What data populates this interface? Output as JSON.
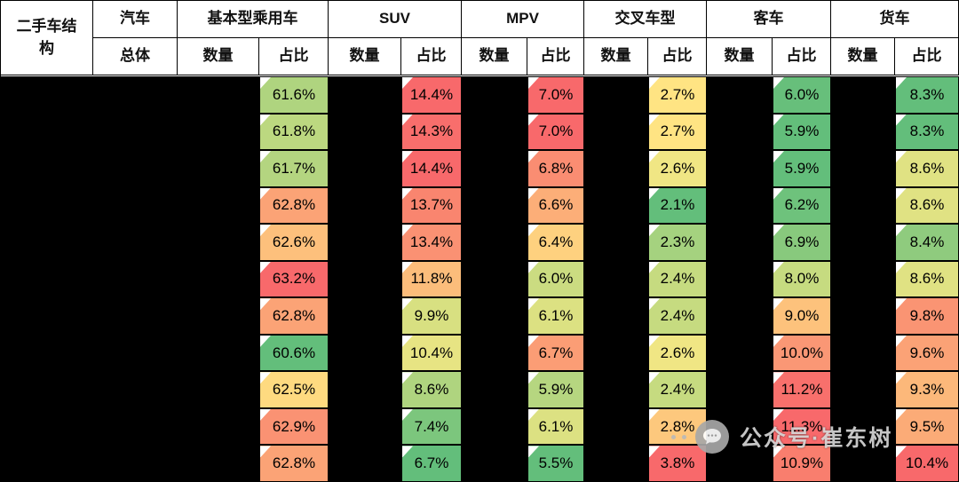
{
  "table": {
    "corner_label": "二手车结构",
    "car_top": "汽车",
    "car_bottom": "总体",
    "sub_qty": "数量",
    "sub_pct": "占比",
    "groups": [
      {
        "label": "基本型乘用车"
      },
      {
        "label": "SUV"
      },
      {
        "label": "MPV"
      },
      {
        "label": "交叉车型"
      },
      {
        "label": "客车"
      },
      {
        "label": "货车"
      }
    ],
    "rows": [
      {
        "cells": [
          {
            "v": "61.6%",
            "c": "#AFD47F"
          },
          {
            "v": "14.4%",
            "c": "#F8696B"
          },
          {
            "v": "7.0%",
            "c": "#F8696B"
          },
          {
            "v": "2.7%",
            "c": "#FFE483"
          },
          {
            "v": "6.0%",
            "c": "#67BF7B"
          },
          {
            "v": "8.3%",
            "c": "#63BE7B"
          }
        ]
      },
      {
        "cells": [
          {
            "v": "61.8%",
            "c": "#BCD880"
          },
          {
            "v": "14.3%",
            "c": "#F86E6C"
          },
          {
            "v": "7.0%",
            "c": "#F8696B"
          },
          {
            "v": "2.7%",
            "c": "#FFE483"
          },
          {
            "v": "5.9%",
            "c": "#63BE7B"
          },
          {
            "v": "8.3%",
            "c": "#63BE7B"
          }
        ]
      },
      {
        "cells": [
          {
            "v": "61.7%",
            "c": "#B4D580"
          },
          {
            "v": "14.4%",
            "c": "#F8696B"
          },
          {
            "v": "6.8%",
            "c": "#FA8D72"
          },
          {
            "v": "2.6%",
            "c": "#F0E684"
          },
          {
            "v": "5.9%",
            "c": "#63BE7B"
          },
          {
            "v": "8.6%",
            "c": "#E0E283"
          }
        ]
      },
      {
        "cells": [
          {
            "v": "62.8%",
            "c": "#FBA376"
          },
          {
            "v": "13.7%",
            "c": "#F9856F"
          },
          {
            "v": "6.6%",
            "c": "#FCAE78"
          },
          {
            "v": "2.1%",
            "c": "#63BE7B"
          },
          {
            "v": "6.2%",
            "c": "#6EC27C"
          },
          {
            "v": "8.6%",
            "c": "#E0E283"
          }
        ]
      },
      {
        "cells": [
          {
            "v": "62.6%",
            "c": "#FDC07C"
          },
          {
            "v": "13.4%",
            "c": "#FA9173"
          },
          {
            "v": "6.4%",
            "c": "#FED17F"
          },
          {
            "v": "2.3%",
            "c": "#A5D27F"
          },
          {
            "v": "6.9%",
            "c": "#88C97D"
          },
          {
            "v": "8.4%",
            "c": "#8FCB7E"
          }
        ]
      },
      {
        "cells": [
          {
            "v": "63.2%",
            "c": "#F8696B"
          },
          {
            "v": "11.8%",
            "c": "#FCBD7B"
          },
          {
            "v": "6.0%",
            "c": "#CBDC81"
          },
          {
            "v": "2.4%",
            "c": "#C6DB80"
          },
          {
            "v": "8.0%",
            "c": "#C6DB80"
          },
          {
            "v": "8.6%",
            "c": "#E0E283"
          }
        ]
      },
      {
        "cells": [
          {
            "v": "62.8%",
            "c": "#FBA376"
          },
          {
            "v": "9.9%",
            "c": "#D8E081"
          },
          {
            "v": "6.1%",
            "c": "#DCE182"
          },
          {
            "v": "2.4%",
            "c": "#C6DB80"
          },
          {
            "v": "9.0%",
            "c": "#FDC27C"
          },
          {
            "v": "9.8%",
            "c": "#FA9473"
          }
        ]
      },
      {
        "cells": [
          {
            "v": "60.6%",
            "c": "#63BE7B"
          },
          {
            "v": "10.4%",
            "c": "#E7E483"
          },
          {
            "v": "6.7%",
            "c": "#FB9D75"
          },
          {
            "v": "2.6%",
            "c": "#F0E684"
          },
          {
            "v": "10.0%",
            "c": "#FA9775"
          },
          {
            "v": "9.6%",
            "c": "#FBA276"
          }
        ]
      },
      {
        "cells": [
          {
            "v": "62.5%",
            "c": "#FEDA80"
          },
          {
            "v": "8.6%",
            "c": "#AFD47F"
          },
          {
            "v": "5.9%",
            "c": "#B6D680"
          },
          {
            "v": "2.4%",
            "c": "#C6DB80"
          },
          {
            "v": "11.2%",
            "c": "#F8706C"
          },
          {
            "v": "9.3%",
            "c": "#FCB87A"
          }
        ]
      },
      {
        "cells": [
          {
            "v": "62.9%",
            "c": "#FA9273"
          },
          {
            "v": "7.4%",
            "c": "#7CC67D"
          },
          {
            "v": "6.1%",
            "c": "#DCE182"
          },
          {
            "v": "2.8%",
            "c": "#FDC87D"
          },
          {
            "v": "11.3%",
            "c": "#F8696B"
          },
          {
            "v": "9.5%",
            "c": "#FBAB77"
          }
        ]
      },
      {
        "cells": [
          {
            "v": "62.8%",
            "c": "#FBA376"
          },
          {
            "v": "6.7%",
            "c": "#63BE7B"
          },
          {
            "v": "5.5%",
            "c": "#63BE7B"
          },
          {
            "v": "3.8%",
            "c": "#F8696B"
          },
          {
            "v": "10.9%",
            "c": "#F97E6E"
          },
          {
            "v": "10.4%",
            "c": "#F8696B"
          }
        ]
      }
    ]
  },
  "watermark": {
    "text": "公众号·崔东树"
  },
  "chart_data": {
    "type": "table",
    "title": "二手车结构",
    "columns": [
      "基本型乘用车 占比",
      "SUV 占比",
      "MPV 占比",
      "交叉车型 占比",
      "客车 占比",
      "货车 占比"
    ],
    "rows": [
      [
        61.6,
        14.4,
        7.0,
        2.7,
        6.0,
        8.3
      ],
      [
        61.8,
        14.3,
        7.0,
        2.7,
        5.9,
        8.3
      ],
      [
        61.7,
        14.4,
        6.8,
        2.6,
        5.9,
        8.6
      ],
      [
        62.8,
        13.7,
        6.6,
        2.1,
        6.2,
        8.6
      ],
      [
        62.6,
        13.4,
        6.4,
        2.3,
        6.9,
        8.4
      ],
      [
        63.2,
        11.8,
        6.0,
        2.4,
        8.0,
        8.6
      ],
      [
        62.8,
        9.9,
        6.1,
        2.4,
        9.0,
        9.8
      ],
      [
        60.6,
        10.4,
        6.7,
        2.6,
        10.0,
        9.6
      ],
      [
        62.5,
        8.6,
        5.9,
        2.4,
        11.2,
        9.3
      ],
      [
        62.9,
        7.4,
        6.1,
        2.8,
        11.3,
        9.5
      ],
      [
        62.8,
        6.7,
        5.5,
        3.8,
        10.9,
        10.4
      ]
    ],
    "notes": "数量 columns and row labels are blacked out in the source image; 占比 cells use a red-yellow-green conditional color scale per column",
    "color_scale": {
      "min": "#63BE7B",
      "mid": "#FFEB84",
      "max": "#F8696B"
    }
  }
}
